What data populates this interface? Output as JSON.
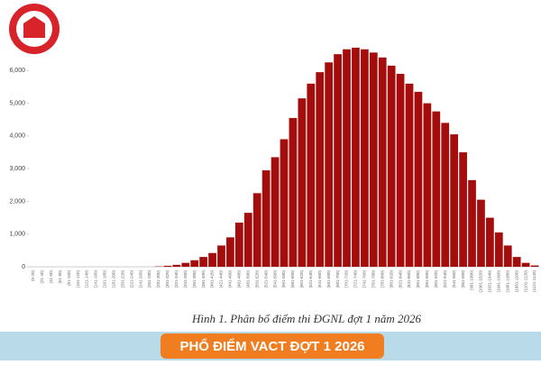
{
  "chart_data": {
    "type": "bar",
    "caption": "Hình 1. Phân bổ điểm thi ĐGNL đợt 1 năm 2026",
    "banner": "PHỔ ĐIỂM VACT ĐỢT 1 2026",
    "color": "#a50d0d",
    "categories": [
      "(0-20)",
      "(21-40)",
      "(41-60)",
      "(61-80)",
      "(81-100)",
      "(101-120)",
      "(121-140)",
      "(141-160)",
      "(161-180)",
      "(181-200)",
      "(201-220)",
      "(221-240)",
      "(241-260)",
      "(261-280)",
      "(281-300)",
      "(301-320)",
      "(321-340)",
      "(341-360)",
      "(361-380)",
      "(381-400)",
      "(401-420)",
      "(421-440)",
      "(441-460)",
      "(461-480)",
      "(481-500)",
      "(501-520)",
      "(521-540)",
      "(541-560)",
      "(561-580)",
      "(581-600)",
      "(601-620)",
      "(621-640)",
      "(641-660)",
      "(661-680)",
      "(681-700)",
      "(701-720)",
      "(721-740)",
      "(741-760)",
      "(761-780)",
      "(781-800)",
      "(801-820)",
      "(821-840)",
      "(841-860)",
      "(861-880)",
      "(881-900)",
      "(901-920)",
      "(921-940)",
      "(941-960)",
      "(961-980)",
      "(981-1000)",
      "(1001-1020)",
      "(1021-1040)",
      "(1041-1060)",
      "(1061-1080)",
      "(1081-1100)",
      "(1101-1120)",
      "(1121-1140)"
    ],
    "values": [
      0,
      0,
      0,
      0,
      0,
      0,
      0,
      0,
      0,
      0,
      0,
      0,
      0,
      0,
      10,
      30,
      60,
      120,
      200,
      300,
      420,
      650,
      900,
      1350,
      1650,
      2250,
      2950,
      3350,
      3900,
      4550,
      5150,
      5600,
      5950,
      6250,
      6500,
      6650,
      6700,
      6650,
      6550,
      6400,
      6150,
      5900,
      5600,
      5350,
      5000,
      4750,
      4400,
      4050,
      3500,
      2650,
      2050,
      1500,
      1050,
      650,
      300,
      120,
      40
    ],
    "ylim": [
      0,
      7000
    ],
    "yticks": [
      0,
      {
        "value": 1000,
        "label": "1,000"
      },
      {
        "value": 2000,
        "label": "2,000"
      },
      {
        "value": 3000,
        "label": "3,000"
      },
      {
        "value": 4000,
        "label": "4,000"
      },
      {
        "value": 5000,
        "label": "5,000"
      },
      {
        "value": 6000,
        "label": "6,000"
      }
    ],
    "grid": false
  }
}
